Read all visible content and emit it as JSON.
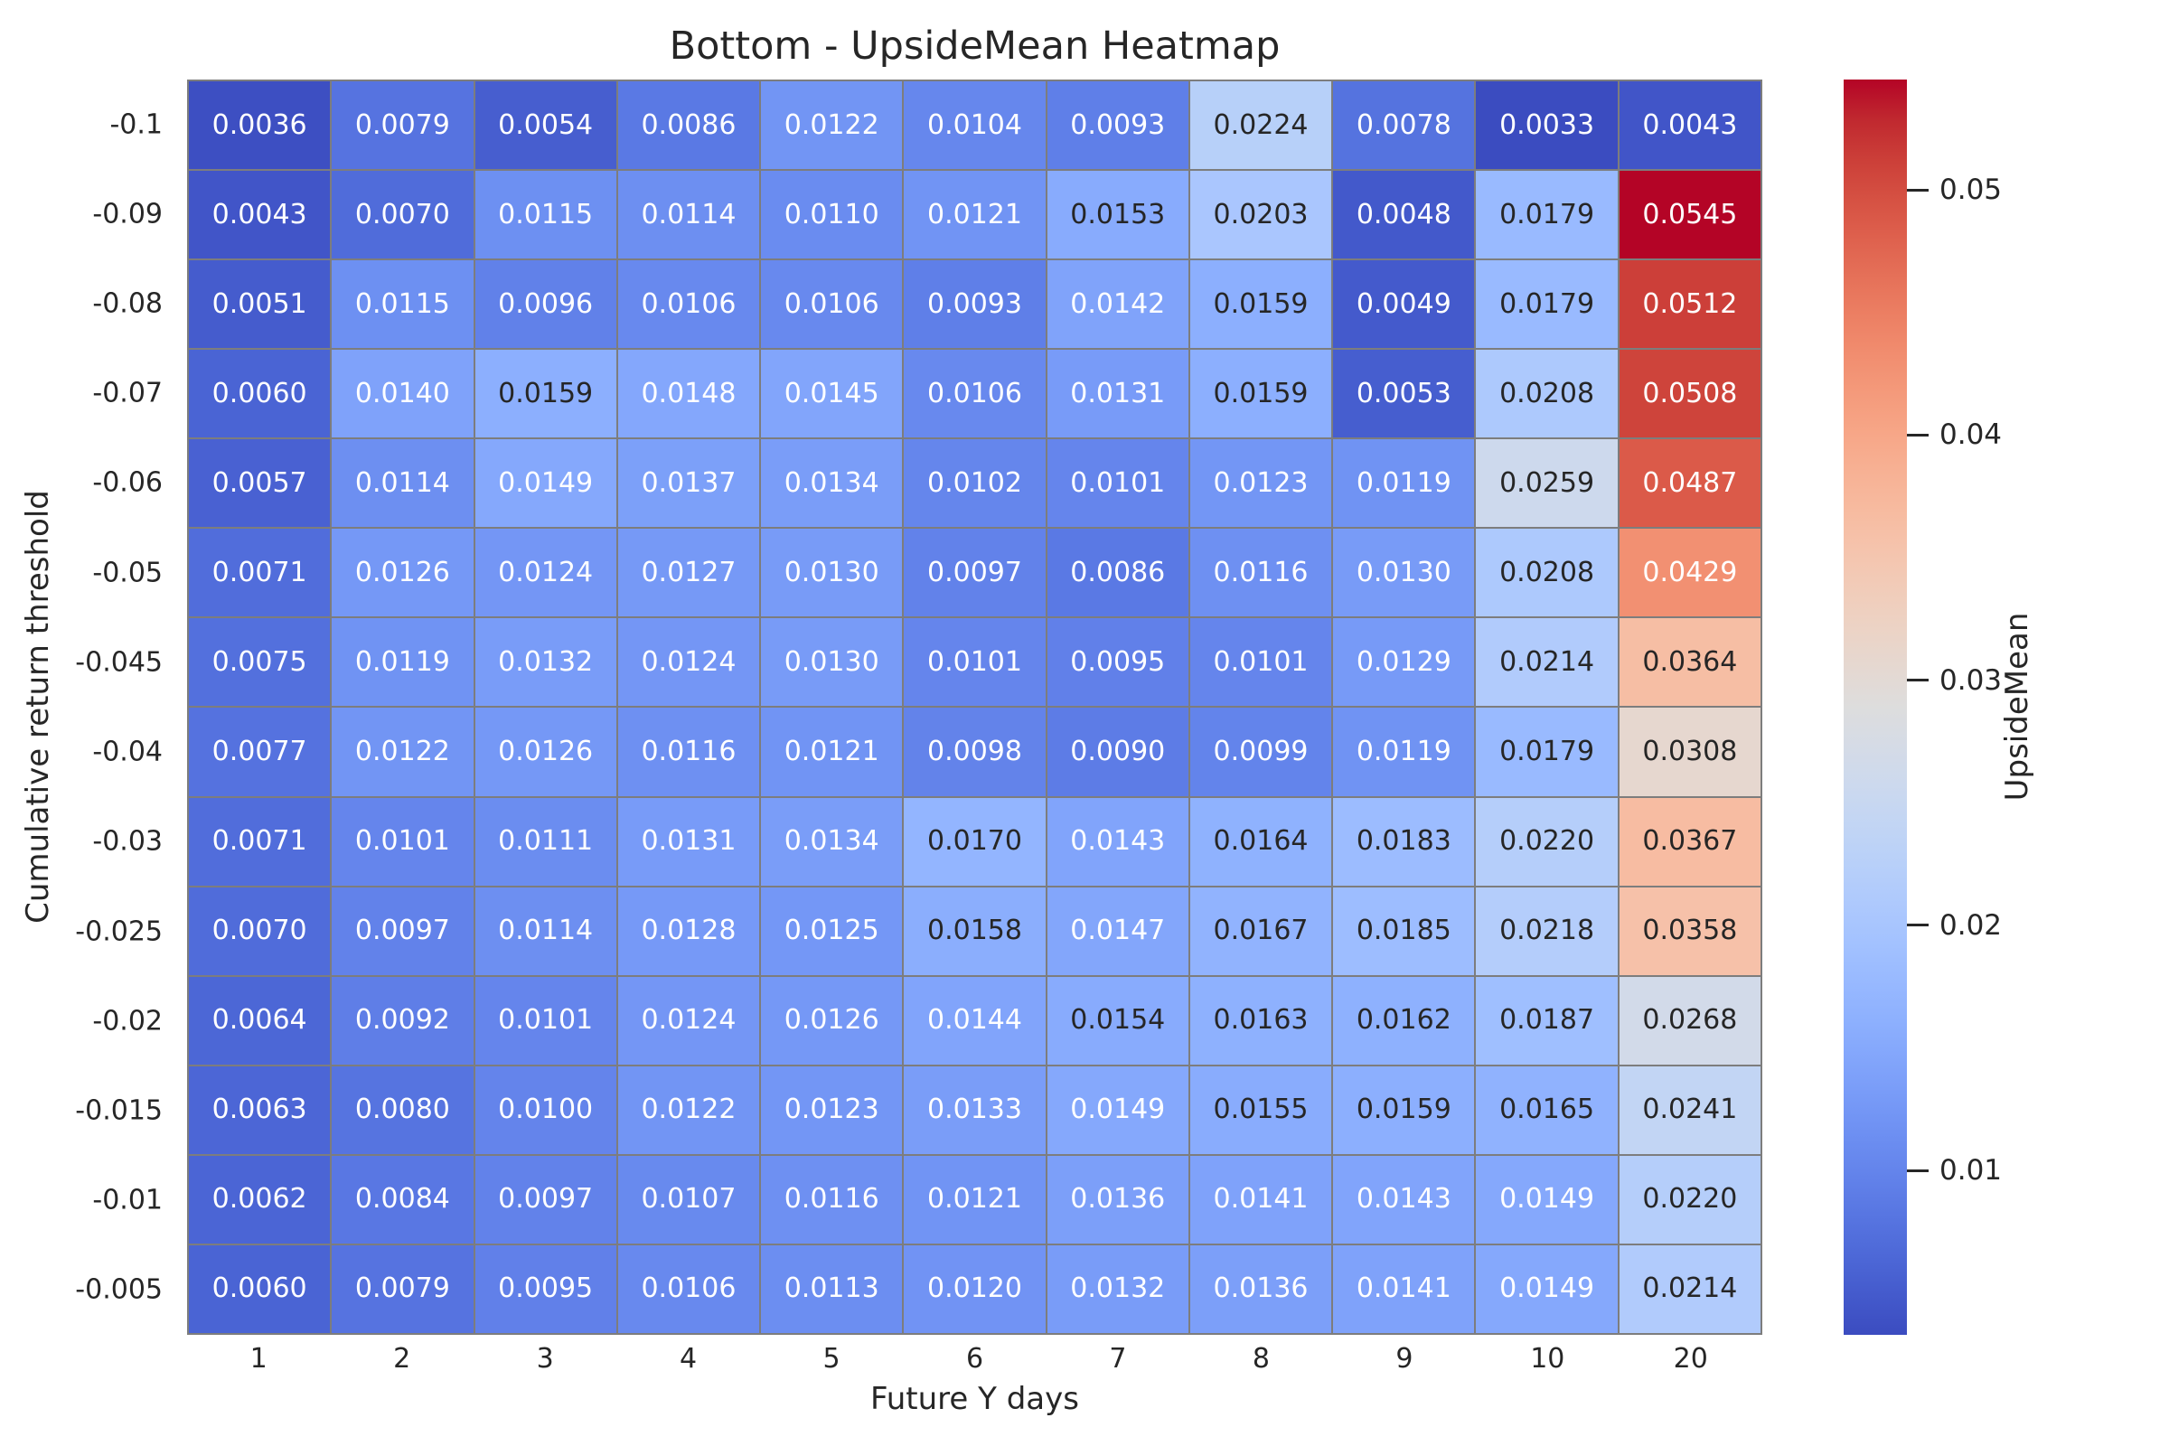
{
  "chart_data": {
    "type": "heatmap",
    "title": "Bottom - UpsideMean Heatmap",
    "xlabel": "Future Y days",
    "ylabel": "Cumulative return threshold",
    "x_categories": [
      "1",
      "2",
      "3",
      "4",
      "5",
      "6",
      "7",
      "8",
      "9",
      "10",
      "20"
    ],
    "y_categories": [
      "-0.1",
      "-0.09",
      "-0.08",
      "-0.07",
      "-0.06",
      "-0.05",
      "-0.045",
      "-0.04",
      "-0.03",
      "-0.025",
      "-0.02",
      "-0.015",
      "-0.01",
      "-0.005"
    ],
    "values": [
      [
        0.0036,
        0.0079,
        0.0054,
        0.0086,
        0.0122,
        0.0104,
        0.0093,
        0.0224,
        0.0078,
        0.0033,
        0.0043
      ],
      [
        0.0043,
        0.007,
        0.0115,
        0.0114,
        0.011,
        0.0121,
        0.0153,
        0.0203,
        0.0048,
        0.0179,
        0.0545
      ],
      [
        0.0051,
        0.0115,
        0.0096,
        0.0106,
        0.0106,
        0.0093,
        0.0142,
        0.0159,
        0.0049,
        0.0179,
        0.0512
      ],
      [
        0.006,
        0.014,
        0.0159,
        0.0148,
        0.0145,
        0.0106,
        0.0131,
        0.0159,
        0.0053,
        0.0208,
        0.0508
      ],
      [
        0.0057,
        0.0114,
        0.0149,
        0.0137,
        0.0134,
        0.0102,
        0.0101,
        0.0123,
        0.0119,
        0.0259,
        0.0487
      ],
      [
        0.0071,
        0.0126,
        0.0124,
        0.0127,
        0.013,
        0.0097,
        0.0086,
        0.0116,
        0.013,
        0.0208,
        0.0429
      ],
      [
        0.0075,
        0.0119,
        0.0132,
        0.0124,
        0.013,
        0.0101,
        0.0095,
        0.0101,
        0.0129,
        0.0214,
        0.0364
      ],
      [
        0.0077,
        0.0122,
        0.0126,
        0.0116,
        0.0121,
        0.0098,
        0.009,
        0.0099,
        0.0119,
        0.0179,
        0.0308
      ],
      [
        0.0071,
        0.0101,
        0.0111,
        0.0131,
        0.0134,
        0.017,
        0.0143,
        0.0164,
        0.0183,
        0.022,
        0.0367
      ],
      [
        0.007,
        0.0097,
        0.0114,
        0.0128,
        0.0125,
        0.0158,
        0.0147,
        0.0167,
        0.0185,
        0.0218,
        0.0358
      ],
      [
        0.0064,
        0.0092,
        0.0101,
        0.0124,
        0.0126,
        0.0144,
        0.0154,
        0.0163,
        0.0162,
        0.0187,
        0.0268
      ],
      [
        0.0063,
        0.008,
        0.01,
        0.0122,
        0.0123,
        0.0133,
        0.0149,
        0.0155,
        0.0159,
        0.0165,
        0.0241
      ],
      [
        0.0062,
        0.0084,
        0.0097,
        0.0107,
        0.0116,
        0.0121,
        0.0136,
        0.0141,
        0.0143,
        0.0149,
        0.022
      ],
      [
        0.006,
        0.0079,
        0.0095,
        0.0106,
        0.0113,
        0.012,
        0.0132,
        0.0136,
        0.0141,
        0.0149,
        0.0214
      ]
    ],
    "annotation_decimals": 4,
    "vmin": 0.0033,
    "vmax": 0.0545,
    "colormap": "coolwarm",
    "colormap_stops": [
      "#3b4cc0",
      "#445acc",
      "#4d68d7",
      "#5775e1",
      "#6282ea",
      "#6c8ef1",
      "#779af7",
      "#82a5fb",
      "#8db0fe",
      "#98b9ff",
      "#a3c2ff",
      "#aec9fd",
      "#b8d0f9",
      "#c2d5f4",
      "#ccd9ee",
      "#d5dbe6",
      "#dddddd",
      "#e5d8d1",
      "#ecd3c5",
      "#f1ccb9",
      "#f5c4ad",
      "#f7bba0",
      "#f7b194",
      "#f7a687",
      "#f49a7b",
      "#f18d6f",
      "#ec7f63",
      "#e57058",
      "#de604d",
      "#d55042",
      "#cb3e38",
      "#c0282f",
      "#b40426"
    ],
    "colorbar": {
      "label": "UpsideMean",
      "ticks": [
        {
          "label": "0.05",
          "value": 0.05
        },
        {
          "label": "0.04",
          "value": 0.04
        },
        {
          "label": "0.03",
          "value": 0.03
        },
        {
          "label": "0.02",
          "value": 0.02
        },
        {
          "label": "0.01",
          "value": 0.01
        }
      ]
    },
    "grid": true,
    "legend_position": "right-colorbar",
    "colors": {
      "grid_line": "#7d7d7d",
      "annotation_dark": "#262626",
      "annotation_light": "#ffffff",
      "axis_text": "#262626",
      "background": "#ffffff"
    }
  }
}
